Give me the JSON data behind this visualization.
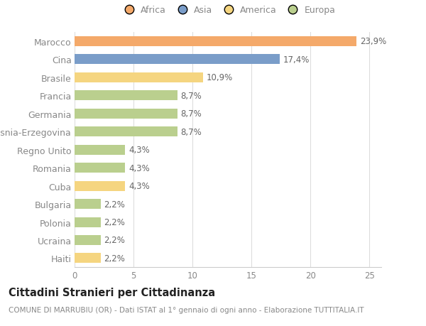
{
  "categories": [
    "Marocco",
    "Cina",
    "Brasile",
    "Francia",
    "Germania",
    "Bosnia-Erzegovina",
    "Regno Unito",
    "Romania",
    "Cuba",
    "Bulgaria",
    "Polonia",
    "Ucraina",
    "Haiti"
  ],
  "values": [
    23.9,
    17.4,
    10.9,
    8.7,
    8.7,
    8.7,
    4.3,
    4.3,
    4.3,
    2.2,
    2.2,
    2.2,
    2.2
  ],
  "labels": [
    "23,9%",
    "17,4%",
    "10,9%",
    "8,7%",
    "8,7%",
    "8,7%",
    "4,3%",
    "4,3%",
    "4,3%",
    "2,2%",
    "2,2%",
    "2,2%",
    "2,2%"
  ],
  "continents": [
    "Africa",
    "Asia",
    "America",
    "Europa",
    "Europa",
    "Europa",
    "Europa",
    "Europa",
    "America",
    "Europa",
    "Europa",
    "Europa",
    "America"
  ],
  "colors": {
    "Africa": "#F4A96A",
    "Asia": "#7A9DC9",
    "America": "#F5D580",
    "Europa": "#BACF8E"
  },
  "legend_order": [
    "Africa",
    "Asia",
    "America",
    "Europa"
  ],
  "xlim": [
    0,
    26
  ],
  "xticks": [
    0,
    5,
    10,
    15,
    20,
    25
  ],
  "title": "Cittadini Stranieri per Cittadinanza",
  "subtitle": "COMUNE DI MARRUBIU (OR) - Dati ISTAT al 1° gennaio di ogni anno - Elaborazione TUTTITALIA.IT",
  "background_color": "#ffffff",
  "bar_height": 0.55,
  "label_fontsize": 8.5,
  "ylabel_fontsize": 9,
  "title_fontsize": 10.5,
  "subtitle_fontsize": 7.5,
  "tick_color": "#888888",
  "label_color": "#666666"
}
